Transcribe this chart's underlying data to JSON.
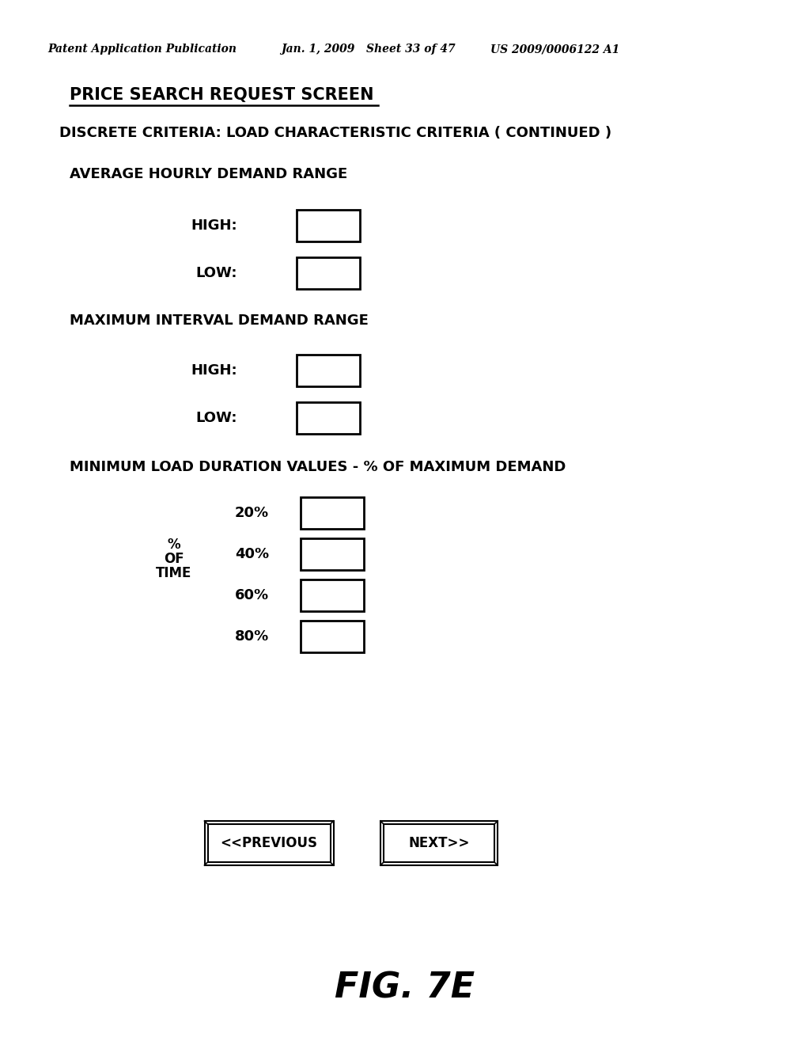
{
  "bg_color": "#ffffff",
  "header_left": "Patent Application Publication",
  "header_mid": "Jan. 1, 2009   Sheet 33 of 47",
  "header_right": "US 2009/0006122 A1",
  "title": "PRICE SEARCH REQUEST SCREEN",
  "subtitle": "DISCRETE CRITERIA: LOAD CHARACTERISTIC CRITERIA ( CONTINUED )",
  "section1_title": "AVERAGE HOURLY DEMAND RANGE",
  "section2_title": "MAXIMUM INTERVAL DEMAND RANGE",
  "section3_title": "MINIMUM LOAD DURATION VALUES - % OF MAXIMUM DEMAND",
  "fig_label": "FIG. 7E",
  "prev_btn": "<<PREVIOUS",
  "next_btn": "NEXT>>"
}
